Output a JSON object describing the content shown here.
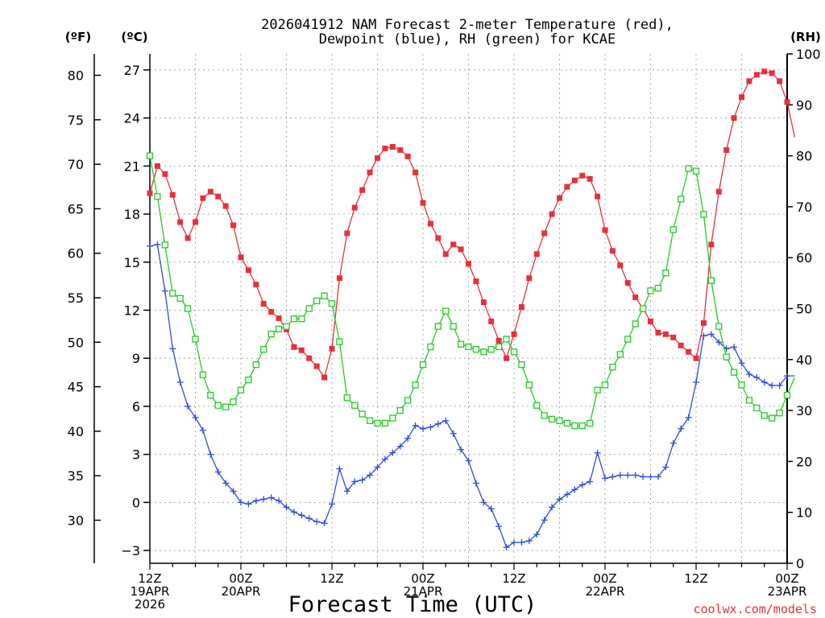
{
  "chart_data": {
    "type": "line",
    "title_line1": "2026041912 NAM Forecast 2-meter Temperature (red),",
    "title_line2": "Dewpoint (blue), RH (green) for KCAE",
    "xlabel": "Forecast Time (UTC)",
    "credit": "coolwx.com/models",
    "unit_f": "(ºF)",
    "unit_c": "(ºC)",
    "unit_rh": "(RH)",
    "x_hours_range": [
      0,
      84
    ],
    "y_c_range": [
      -3.8,
      28.0
    ],
    "y_rh_range": [
      0,
      100
    ],
    "grid": true,
    "x_ticks": [
      {
        "hour": 0,
        "lines": [
          "12Z",
          "19APR",
          "2026"
        ]
      },
      {
        "hour": 12,
        "lines": [
          "00Z",
          "20APR"
        ]
      },
      {
        "hour": 24,
        "lines": [
          "12Z"
        ]
      },
      {
        "hour": 36,
        "lines": [
          "00Z",
          "21APR"
        ]
      },
      {
        "hour": 48,
        "lines": [
          "12Z"
        ]
      },
      {
        "hour": 60,
        "lines": [
          "00Z",
          "22APR"
        ]
      },
      {
        "hour": 72,
        "lines": [
          "12Z"
        ]
      },
      {
        "hour": 84,
        "lines": [
          "00Z",
          "23APR"
        ]
      }
    ],
    "y_c_ticks": [
      "-3",
      "0",
      "3",
      "6",
      "9",
      "12",
      "15",
      "18",
      "21",
      "24",
      "27"
    ],
    "y_f_ticks": [
      "30",
      "35",
      "40",
      "45",
      "50",
      "55",
      "60",
      "65",
      "70",
      "75",
      "80"
    ],
    "y_rh_ticks": [
      "0",
      "10",
      "20",
      "30",
      "40",
      "50",
      "60",
      "70",
      "80",
      "90",
      "100"
    ],
    "series": [
      {
        "name": "Temperature",
        "unit": "C",
        "color": "#e8303a",
        "marker": "filled-square",
        "values": [
          19.3,
          21.0,
          20.5,
          19.2,
          17.5,
          16.5,
          17.5,
          19.0,
          19.4,
          19.1,
          18.5,
          17.3,
          15.3,
          14.5,
          13.6,
          12.4,
          11.9,
          11.5,
          10.8,
          9.7,
          9.5,
          9.0,
          8.5,
          7.8,
          9.6,
          14.0,
          16.8,
          18.4,
          19.5,
          20.6,
          21.5,
          22.1,
          22.2,
          22.0,
          21.6,
          20.6,
          18.7,
          17.4,
          16.5,
          15.5,
          16.1,
          15.8,
          14.9,
          13.8,
          12.5,
          11.3,
          10.1,
          9.0,
          10.5,
          12.2,
          14.0,
          15.5,
          16.8,
          18.0,
          19.0,
          19.7,
          20.1,
          20.4,
          20.2,
          19.1,
          17.0,
          15.7,
          14.8,
          13.7,
          12.8,
          12.1,
          11.3,
          10.6,
          10.5,
          10.3,
          9.8,
          9.4,
          9.0,
          11.2,
          16.1,
          19.4,
          22.0,
          24.0,
          25.3,
          26.3,
          26.7,
          26.9,
          26.8,
          26.3,
          25.0,
          22.8
        ]
      },
      {
        "name": "Dewpoint",
        "unit": "C",
        "color": "#2d4ee0",
        "marker": "plus",
        "values": [
          16.0,
          16.1,
          13.2,
          9.6,
          7.5,
          6.0,
          5.3,
          4.5,
          3.0,
          1.9,
          1.2,
          0.7,
          0.0,
          -0.1,
          0.1,
          0.2,
          0.3,
          0.1,
          -0.3,
          -0.6,
          -0.8,
          -1.0,
          -1.2,
          -1.3,
          -0.1,
          2.1,
          0.7,
          1.3,
          1.4,
          1.7,
          2.2,
          2.7,
          3.1,
          3.5,
          4.0,
          4.8,
          4.6,
          4.7,
          4.9,
          5.1,
          4.3,
          3.3,
          2.6,
          1.2,
          0.0,
          -0.4,
          -1.5,
          -2.8,
          -2.5,
          -2.5,
          -2.4,
          -2.0,
          -1.1,
          -0.3,
          0.2,
          0.5,
          0.8,
          1.1,
          1.3,
          3.1,
          1.5,
          1.6,
          1.7,
          1.7,
          1.7,
          1.6,
          1.6,
          1.6,
          2.2,
          3.7,
          4.6,
          5.3,
          7.5,
          10.4,
          10.5,
          10.0,
          9.6,
          9.7,
          8.7,
          8.0,
          7.8,
          7.5,
          7.3,
          7.3,
          7.9,
          7.9
        ]
      },
      {
        "name": "RH",
        "unit": "%",
        "color": "#22cc22",
        "marker": "open-square",
        "values": [
          80,
          72,
          62.5,
          53,
          52,
          50,
          44,
          37,
          33,
          31,
          30.7,
          31.7,
          34,
          36,
          39,
          42,
          45,
          46,
          46.5,
          48,
          48,
          50,
          51.5,
          52.5,
          51,
          43.5,
          32.5,
          31,
          29.3,
          28,
          27.5,
          27.5,
          28.5,
          30,
          32,
          35,
          39,
          42.5,
          46.5,
          49.5,
          46.5,
          43,
          42.5,
          42,
          41.5,
          42,
          42.5,
          44,
          41.5,
          39,
          35,
          31,
          29,
          28.3,
          28,
          27.5,
          27,
          27,
          27.5,
          34,
          35,
          38.5,
          41,
          44,
          47,
          50,
          53.5,
          54,
          57,
          65.5,
          71.5,
          77.5,
          77,
          68.5,
          55.5,
          46.5,
          40.5,
          37.5,
          35,
          32,
          30.5,
          29,
          28.5,
          29.5,
          33,
          36.5
        ]
      }
    ]
  }
}
